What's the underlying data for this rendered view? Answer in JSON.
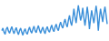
{
  "chart_data": {
    "type": "line",
    "categories": [
      null,
      null,
      null,
      null,
      null,
      null,
      null,
      null,
      null,
      null,
      null,
      null,
      null,
      null,
      null,
      null,
      null,
      null,
      null,
      null,
      null,
      null,
      null,
      null,
      null,
      null,
      null,
      null,
      null,
      null,
      null,
      null,
      null,
      null,
      null,
      null,
      null,
      null,
      null,
      null,
      null,
      null,
      null,
      null,
      null,
      null,
      null,
      null,
      null,
      null,
      null,
      null,
      null,
      null,
      null,
      null,
      null,
      null,
      null,
      null,
      null,
      null,
      null,
      null,
      null,
      null,
      null,
      null,
      null,
      null,
      null,
      null,
      null,
      null,
      null,
      null,
      null,
      null,
      null,
      null,
      null,
      null,
      null,
      null,
      null,
      null,
      null,
      null,
      null,
      null,
      null,
      null,
      null,
      null,
      null,
      null
    ],
    "values": [
      45,
      50,
      42,
      38,
      48,
      52,
      44,
      40,
      47,
      53,
      45,
      39,
      46,
      51,
      43,
      37,
      45,
      50,
      42,
      36,
      44,
      49,
      41,
      38,
      46,
      52,
      44,
      40,
      48,
      54,
      45,
      41,
      49,
      55,
      46,
      40,
      47,
      52,
      44,
      39,
      48,
      53,
      45,
      42,
      50,
      56,
      47,
      43,
      52,
      58,
      49,
      45,
      55,
      62,
      54,
      50,
      60,
      68,
      58,
      52,
      65,
      75,
      62,
      55,
      70,
      88,
      72,
      60,
      78,
      95,
      80,
      65,
      74,
      90,
      70,
      55,
      72,
      92,
      75,
      48,
      68,
      85,
      72,
      60,
      76,
      94,
      78,
      45,
      70,
      88,
      74,
      62,
      80,
      92,
      76,
      58
    ],
    "color": "#3a8fd9",
    "ylim": [
      30,
      100
    ],
    "grid": false,
    "tick_labels": false
  }
}
